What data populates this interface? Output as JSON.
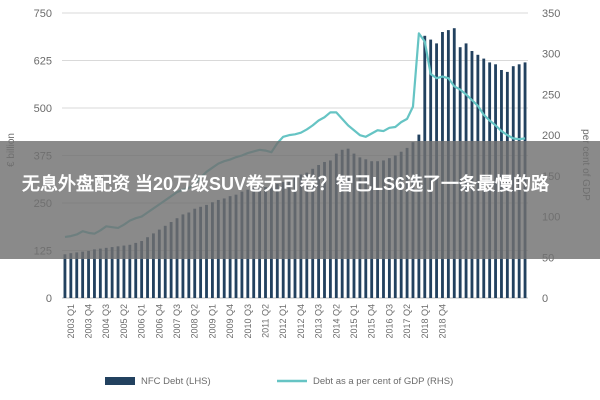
{
  "article": {
    "title": "无息外盘配资 当20万级SUV卷无可卷？智己LS6选了一条最慢的路"
  },
  "colors": {
    "bar": "#22415f",
    "line": "#66c4c4",
    "grid": "#d9d9d9",
    "axis_text": "#6b6b6b",
    "overlay": "#707070"
  },
  "chart_data": {
    "type": "bar",
    "title": "",
    "xlabel": "",
    "ylabel": "€ billion",
    "y2label": "per cent of GDP",
    "ylim": [
      0,
      750
    ],
    "y2lim": [
      0,
      350
    ],
    "yticks": [
      "0",
      "125",
      "250",
      "375",
      "500",
      "625",
      "750"
    ],
    "y2ticks": [
      "0",
      "50",
      "100",
      "150",
      "200",
      "250",
      "300",
      "350"
    ],
    "xticks": [
      "2003 Q1",
      "2003 Q4",
      "2004 Q3",
      "2005 Q2",
      "2006 Q1",
      "2006 Q4",
      "2007 Q3",
      "2008 Q2",
      "2009 Q1",
      "2009 Q4",
      "2010 Q3",
      "2011 Q2",
      "2012 Q1",
      "2012 Q4",
      "2013 Q3",
      "2014 Q2",
      "2015 Q1",
      "2015 Q4",
      "2016 Q3",
      "2017 Q2",
      "2018 Q1",
      "2018 Q4"
    ],
    "grid": true,
    "legend_position": "bottom",
    "series": [
      {
        "name": "NFC Debt (LHS)",
        "axis": "left",
        "type": "bar",
        "values": [
          115,
          118,
          120,
          122,
          124,
          128,
          130,
          132,
          134,
          136,
          138,
          140,
          145,
          150,
          160,
          170,
          180,
          190,
          200,
          210,
          220,
          225,
          235,
          240,
          245,
          252,
          258,
          262,
          268,
          272,
          280,
          285,
          290,
          290,
          292,
          290,
          300,
          305,
          310,
          318,
          325,
          330,
          340,
          350,
          358,
          362,
          380,
          390,
          393,
          380,
          370,
          365,
          360,
          360,
          362,
          368,
          375,
          385,
          395,
          410,
          430,
          690,
          680,
          670,
          700,
          705,
          710,
          660,
          670,
          650,
          640,
          630,
          620,
          615,
          600,
          595,
          610,
          615,
          620
        ]
      },
      {
        "name": "Debt as a per cent of GDP (RHS)",
        "axis": "right",
        "type": "line",
        "values": [
          75,
          76,
          78,
          82,
          80,
          79,
          83,
          88,
          87,
          86,
          90,
          95,
          98,
          100,
          105,
          110,
          115,
          120,
          125,
          130,
          133,
          135,
          140,
          148,
          155,
          160,
          165,
          168,
          170,
          173,
          175,
          178,
          180,
          182,
          181,
          179,
          190,
          198,
          200,
          201,
          203,
          207,
          212,
          218,
          222,
          228,
          228,
          220,
          212,
          206,
          200,
          198,
          202,
          206,
          205,
          209,
          210,
          216,
          220,
          235,
          325,
          315,
          275,
          270,
          272,
          270,
          260,
          256,
          250,
          243,
          236,
          225,
          218,
          212,
          205,
          200,
          196,
          195,
          196
        ]
      }
    ]
  }
}
